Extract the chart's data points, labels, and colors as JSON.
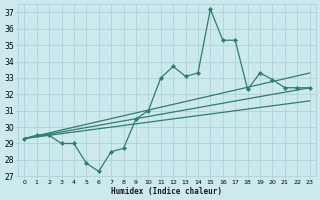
{
  "xlabel": "Humidex (Indice chaleur)",
  "xlim": [
    -0.5,
    23.5
  ],
  "ylim": [
    27,
    37.5
  ],
  "yticks": [
    27,
    28,
    29,
    30,
    31,
    32,
    33,
    34,
    35,
    36,
    37
  ],
  "xticks": [
    0,
    1,
    2,
    3,
    4,
    5,
    6,
    7,
    8,
    9,
    10,
    11,
    12,
    13,
    14,
    15,
    16,
    17,
    18,
    19,
    20,
    21,
    22,
    23
  ],
  "bg_color": "#cce9ed",
  "grid_color": "#aacfd4",
  "line_color": "#2e7d6e",
  "series1_x": [
    0,
    1,
    2,
    3,
    4,
    5,
    6,
    7,
    8,
    9,
    10,
    11,
    12,
    13,
    14,
    15,
    16,
    17,
    18,
    19,
    20,
    21,
    22,
    23
  ],
  "series1_y": [
    29.3,
    29.5,
    29.5,
    29.0,
    29.0,
    27.8,
    27.3,
    28.5,
    28.7,
    30.5,
    31.0,
    33.0,
    33.7,
    33.1,
    33.3,
    37.2,
    35.3,
    35.3,
    32.3,
    33.3,
    32.9,
    32.4,
    32.4,
    32.4
  ],
  "series2_x": [
    0,
    23
  ],
  "series2_y": [
    29.3,
    33.3
  ],
  "series3_x": [
    0,
    23
  ],
  "series3_y": [
    29.3,
    32.4
  ],
  "series4_x": [
    0,
    23
  ],
  "series4_y": [
    29.3,
    31.6
  ]
}
